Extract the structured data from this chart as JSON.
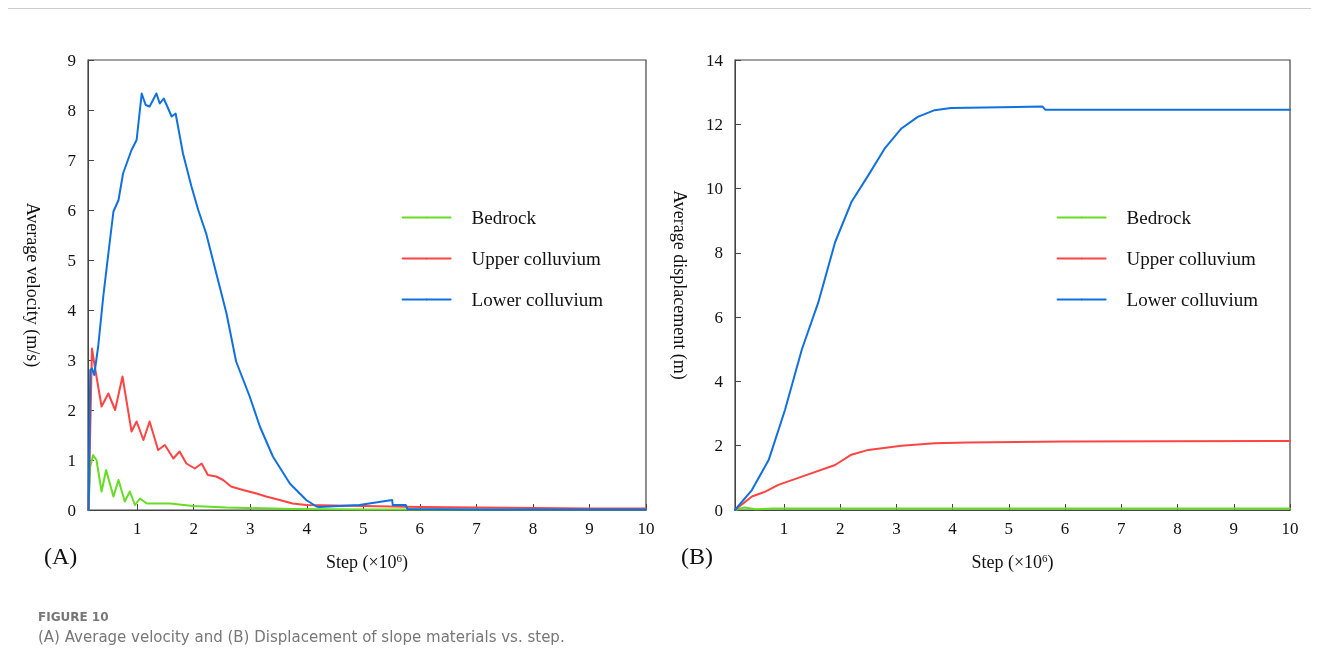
{
  "chart_data": [
    {
      "type": "line",
      "xlabel": "Step (×10$^{6}$)",
      "ylabel": "Average velocity (m/s)",
      "xlim": [
        0.13,
        10
      ],
      "xticks": [
        1,
        2,
        3,
        4,
        5,
        6,
        7,
        8,
        9,
        10
      ],
      "ylim": [
        0,
        9
      ],
      "yticks": [
        0,
        1,
        2,
        3,
        4,
        5,
        6,
        7,
        8,
        9
      ],
      "grid": false,
      "legend": "right",
      "marker": "none",
      "line_style": "solid",
      "annotations": [
        "(A)",
        "FIGURE 10",
        "(A) Average velocity and (B) Displacement of slope materials vs. step."
      ],
      "series": [
        {
          "name": "Bedrock",
          "color": "#66dd22",
          "x": [
            0.14,
            0.17,
            0.22,
            0.28,
            0.37,
            0.45,
            0.58,
            0.67,
            0.78,
            0.87,
            0.96,
            1.05,
            1.17,
            1.34,
            1.58,
            1.99,
            2.58,
            3.75,
            5,
            7,
            10
          ],
          "values": [
            0,
            0.87,
            1.1,
            1.0,
            0.37,
            0.8,
            0.27,
            0.6,
            0.17,
            0.37,
            0.1,
            0.23,
            0.13,
            0.13,
            0.13,
            0.08,
            0.05,
            0.02,
            0.01,
            0.01,
            0.01
          ]
        },
        {
          "name": "Upper colluvium",
          "color": "#ff4444",
          "x": [
            0.14,
            0.2,
            0.25,
            0.37,
            0.49,
            0.61,
            0.74,
            0.9,
            0.99,
            1.11,
            1.22,
            1.37,
            1.49,
            1.64,
            1.75,
            1.87,
            2.02,
            2.14,
            2.25,
            2.4,
            2.52,
            2.66,
            2.87,
            3.11,
            3.28,
            3.52,
            3.75,
            3.99,
            4.5,
            5,
            5.5,
            6,
            7,
            8,
            9,
            10
          ],
          "values": [
            0,
            3.23,
            2.87,
            2.07,
            2.33,
            2.0,
            2.67,
            1.57,
            1.77,
            1.4,
            1.77,
            1.2,
            1.3,
            1.03,
            1.17,
            0.93,
            0.83,
            0.93,
            0.7,
            0.67,
            0.6,
            0.47,
            0.4,
            0.33,
            0.27,
            0.2,
            0.13,
            0.1,
            0.09,
            0.08,
            0.07,
            0.06,
            0.05,
            0.04,
            0.03,
            0.03
          ]
        },
        {
          "name": "Lower colluvium",
          "color": "#1170e0",
          "x": [
            0.14,
            0.17,
            0.2,
            0.24,
            0.31,
            0.4,
            0.49,
            0.58,
            0.67,
            0.75,
            0.9,
            0.99,
            1.08,
            1.15,
            1.22,
            1.34,
            1.4,
            1.47,
            1.61,
            1.68,
            1.81,
            1.96,
            2.08,
            2.22,
            2.4,
            2.58,
            2.75,
            2.99,
            3.17,
            3.4,
            3.7,
            3.99,
            4.17,
            4.22,
            4.93,
            5.51,
            5.52,
            5.75,
            5.78,
            7,
            10
          ],
          "values": [
            0,
            2.8,
            2.83,
            2.7,
            3.27,
            4.27,
            5.13,
            5.97,
            6.2,
            6.73,
            7.2,
            7.4,
            8.33,
            8.1,
            8.07,
            8.33,
            8.13,
            8.23,
            7.87,
            7.93,
            7.13,
            6.47,
            6.0,
            5.53,
            4.73,
            3.93,
            2.97,
            2.27,
            1.67,
            1.07,
            0.53,
            0.2,
            0.07,
            0.06,
            0.1,
            0.2,
            0.1,
            0.1,
            0.02,
            0.01,
            0.01
          ]
        }
      ]
    },
    {
      "type": "line",
      "xlabel": "Step (×10$^{6}$)",
      "ylabel": "Average displacement (m)",
      "xlim": [
        0.13,
        10
      ],
      "xticks": [
        1,
        2,
        3,
        4,
        5,
        6,
        7,
        8,
        9,
        10
      ],
      "ylim": [
        0,
        14
      ],
      "yticks": [
        0,
        2,
        4,
        6,
        8,
        10,
        12,
        14
      ],
      "grid": false,
      "legend": "right",
      "marker": "none",
      "line_style": "solid",
      "annotations": [
        "(B)"
      ],
      "series": [
        {
          "name": "Bedrock",
          "color": "#66dd22",
          "x": [
            0.13,
            0.3,
            0.5,
            0.8,
            10
          ],
          "values": [
            0,
            0.08,
            0.02,
            0.05,
            0.05
          ]
        },
        {
          "name": "Upper colluvium",
          "color": "#ff4444",
          "x": [
            0.13,
            0.43,
            0.67,
            0.9,
            1.32,
            1.91,
            2.2,
            2.5,
            3.09,
            3.68,
            4.27,
            6,
            10
          ],
          "values": [
            0,
            0.42,
            0.57,
            0.78,
            1.04,
            1.4,
            1.72,
            1.87,
            2.0,
            2.08,
            2.1,
            2.13,
            2.15
          ]
        },
        {
          "name": "Lower colluvium",
          "color": "#1170e0",
          "x": [
            0.13,
            0.43,
            0.73,
            1.02,
            1.32,
            1.61,
            1.91,
            2.2,
            2.5,
            2.79,
            3.09,
            3.38,
            3.68,
            3.97,
            4.86,
            5.6,
            5.65,
            10
          ],
          "values": [
            0,
            0.62,
            1.56,
            3.12,
            5.0,
            6.45,
            8.33,
            9.58,
            10.41,
            11.24,
            11.87,
            12.23,
            12.44,
            12.51,
            12.53,
            12.55,
            12.45,
            12.45
          ]
        }
      ]
    }
  ]
}
